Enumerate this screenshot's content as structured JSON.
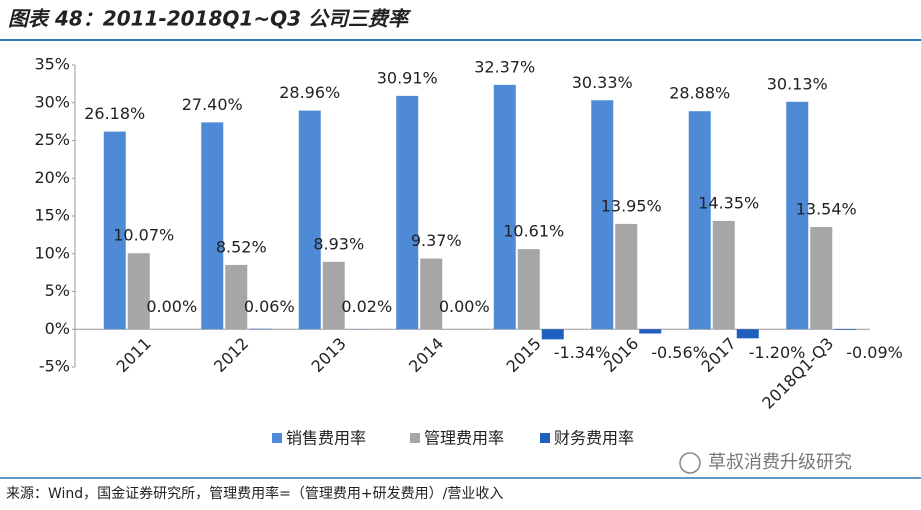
{
  "chart_data": {
    "type": "bar",
    "title": "图表 48：2011-2018Q1~Q3 公司三费率",
    "categories": [
      "2011",
      "2012",
      "2013",
      "2014",
      "2015",
      "2016",
      "2017",
      "2018Q1-Q3"
    ],
    "series": [
      {
        "name": "销售费用率",
        "color": "#4f8ad6",
        "values": [
          26.18,
          27.4,
          28.96,
          30.91,
          32.37,
          30.33,
          28.88,
          30.13
        ],
        "value_labels": [
          "26.18%",
          "27.40%",
          "28.96%",
          "30.91%",
          "32.37%",
          "30.33%",
          "28.88%",
          "30.13%"
        ]
      },
      {
        "name": "管理费用率",
        "color": "#a6a6a6",
        "values": [
          10.07,
          8.52,
          8.93,
          9.37,
          10.61,
          13.95,
          14.35,
          13.54
        ],
        "value_labels": [
          "10.07%",
          "8.52%",
          "8.93%",
          "9.37%",
          "10.61%",
          "13.95%",
          "14.35%",
          "13.54%"
        ]
      },
      {
        "name": "财务费用率",
        "color": "#1f5fbf",
        "values": [
          0,
          0.06,
          0.02,
          0,
          -1.34,
          -0.56,
          -1.2,
          -0.09
        ],
        "value_labels": [
          "0.00%",
          "0.06%",
          "0.02%",
          "0.00%",
          "-1.34%",
          "-0.56%",
          "-1.20%",
          "-0.09%"
        ]
      }
    ],
    "ylim": [
      -5,
      35
    ],
    "yticks": [
      {
        "value": -5,
        "label": "-5%"
      },
      {
        "value": 0,
        "label": "0%"
      },
      {
        "value": 5,
        "label": "5%"
      },
      {
        "value": 10,
        "label": "10%"
      },
      {
        "value": 15,
        "label": "15%"
      },
      {
        "value": 20,
        "label": "20%"
      },
      {
        "value": 25,
        "label": "25%"
      },
      {
        "value": 30,
        "label": "30%"
      },
      {
        "value": 35,
        "label": "35%"
      }
    ],
    "legend": "bottom",
    "source": "来源：Wind，国金证券研究所，管理费用率=（管理费用+研发费用）/营业收入",
    "watermark": "草叔消费升级研究"
  }
}
